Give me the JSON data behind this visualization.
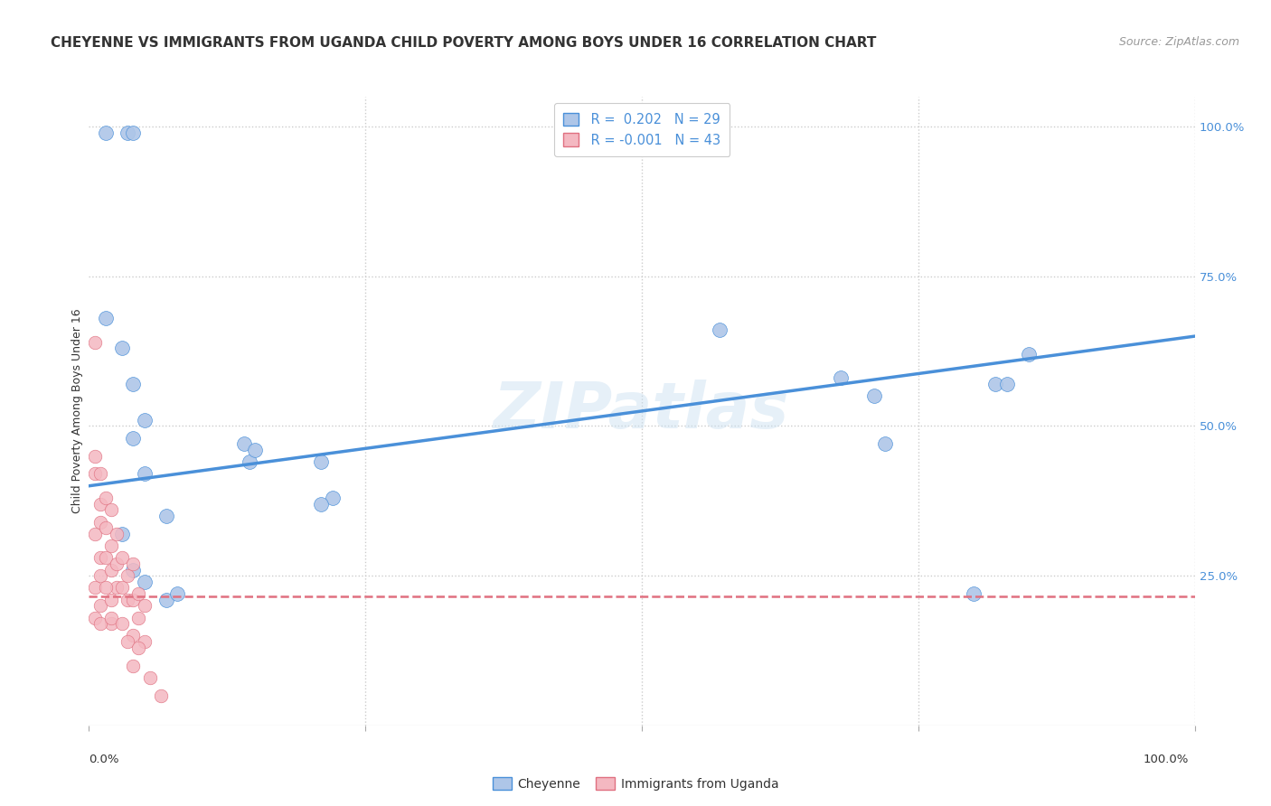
{
  "title": "CHEYENNE VS IMMIGRANTS FROM UGANDA CHILD POVERTY AMONG BOYS UNDER 16 CORRELATION CHART",
  "source": "Source: ZipAtlas.com",
  "ylabel": "Child Poverty Among Boys Under 16",
  "watermark": "ZIPatlas",
  "legend1_label": "Cheyenne",
  "legend2_label": "Immigrants from Uganda",
  "r1": 0.202,
  "n1": 29,
  "r2": -0.001,
  "n2": 43,
  "cheyenne_color": "#aec6e8",
  "uganda_color": "#f4b8c1",
  "line_blue": "#4a90d9",
  "line_pink": "#e07080",
  "cheyenne_x": [
    1.5,
    3.5,
    4.0,
    1.5,
    3.0,
    4.0,
    5.0,
    4.0,
    14.0,
    14.5,
    15.0,
    21.0,
    22.0,
    3.0,
    4.0,
    5.0,
    7.0,
    8.0,
    21.0,
    57.0,
    68.0,
    71.0,
    72.0,
    80.0,
    82.0,
    83.0,
    85.0,
    5.0,
    7.0
  ],
  "cheyenne_y": [
    99.0,
    99.0,
    99.0,
    68.0,
    63.0,
    57.0,
    51.0,
    48.0,
    47.0,
    44.0,
    46.0,
    44.0,
    38.0,
    32.0,
    26.0,
    24.0,
    21.0,
    22.0,
    37.0,
    66.0,
    58.0,
    55.0,
    47.0,
    22.0,
    57.0,
    57.0,
    62.0,
    42.0,
    35.0
  ],
  "uganda_x": [
    0.5,
    0.5,
    0.5,
    0.5,
    0.5,
    1.0,
    1.0,
    1.0,
    1.0,
    1.0,
    1.0,
    1.5,
    1.5,
    1.5,
    2.0,
    2.0,
    2.0,
    2.0,
    2.0,
    2.5,
    2.5,
    2.5,
    3.0,
    3.0,
    3.5,
    3.5,
    4.0,
    4.0,
    4.0,
    4.0,
    4.5,
    4.5,
    5.0,
    5.0,
    5.5,
    6.5,
    0.5,
    1.0,
    1.5,
    2.0,
    3.0,
    3.5,
    4.5
  ],
  "uganda_y": [
    64.0,
    45.0,
    42.0,
    32.0,
    23.0,
    42.0,
    37.0,
    34.0,
    28.0,
    25.0,
    20.0,
    38.0,
    33.0,
    28.0,
    36.0,
    30.0,
    26.0,
    21.0,
    17.0,
    32.0,
    27.0,
    23.0,
    28.0,
    23.0,
    25.0,
    21.0,
    27.0,
    21.0,
    15.0,
    10.0,
    22.0,
    18.0,
    20.0,
    14.0,
    8.0,
    5.0,
    18.0,
    17.0,
    23.0,
    18.0,
    17.0,
    14.0,
    13.0
  ],
  "xlim": [
    0.0,
    100.0
  ],
  "ylim": [
    0.0,
    105.0
  ],
  "blue_line_x0": 0.0,
  "blue_line_y0": 40.0,
  "blue_line_x1": 100.0,
  "blue_line_y1": 65.0,
  "pink_line_x0": 0.0,
  "pink_line_y0": 21.5,
  "pink_line_x1": 100.0,
  "pink_line_y1": 21.5,
  "title_fontsize": 11,
  "source_fontsize": 9,
  "ylabel_fontsize": 9,
  "tick_fontsize": 9.5
}
